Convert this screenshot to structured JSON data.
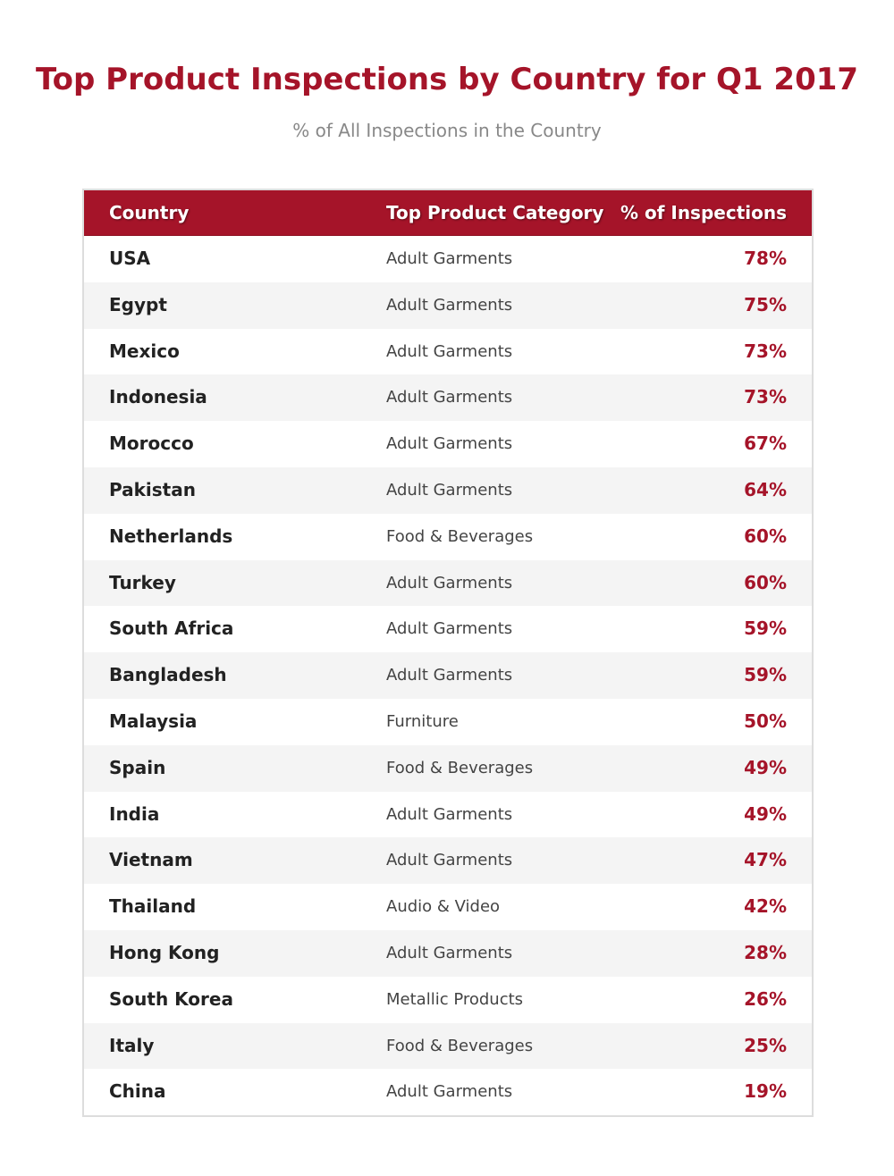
{
  "colors": {
    "accent": "#a51429",
    "header_bg": "#a51429",
    "subtitle": "#888888",
    "row_alt": "#f4f4f4",
    "row_base": "#ffffff"
  },
  "chart_data": {
    "type": "table",
    "title": "Top Product Inspections by Country for Q1 2017",
    "subtitle": "% of All Inspections in the Country",
    "columns": [
      "Country",
      "Top Product Category",
      "% of Inspections"
    ],
    "rows": [
      {
        "country": "USA",
        "category": "Adult Garments",
        "percent": "78%"
      },
      {
        "country": "Egypt",
        "category": "Adult Garments",
        "percent": "75%"
      },
      {
        "country": "Mexico",
        "category": "Adult Garments",
        "percent": "73%"
      },
      {
        "country": "Indonesia",
        "category": "Adult Garments",
        "percent": "73%"
      },
      {
        "country": "Morocco",
        "category": "Adult Garments",
        "percent": "67%"
      },
      {
        "country": "Pakistan",
        "category": "Adult Garments",
        "percent": "64%"
      },
      {
        "country": "Netherlands",
        "category": "Food & Beverages",
        "percent": "60%"
      },
      {
        "country": "Turkey",
        "category": "Adult Garments",
        "percent": "60%"
      },
      {
        "country": "South Africa",
        "category": "Adult Garments",
        "percent": "59%"
      },
      {
        "country": "Bangladesh",
        "category": "Adult Garments",
        "percent": "59%"
      },
      {
        "country": "Malaysia",
        "category": "Furniture",
        "percent": "50%"
      },
      {
        "country": "Spain",
        "category": "Food & Beverages",
        "percent": "49%"
      },
      {
        "country": "India",
        "category": "Adult Garments",
        "percent": "49%"
      },
      {
        "country": "Vietnam",
        "category": "Adult Garments",
        "percent": "47%"
      },
      {
        "country": "Thailand",
        "category": "Audio & Video",
        "percent": "42%"
      },
      {
        "country": "Hong Kong",
        "category": "Adult Garments",
        "percent": "28%"
      },
      {
        "country": "South Korea",
        "category": "Metallic Products",
        "percent": "26%"
      },
      {
        "country": "Italy",
        "category": "Food & Beverages",
        "percent": "25%"
      },
      {
        "country": "China",
        "category": "Adult Garments",
        "percent": "19%"
      }
    ]
  }
}
